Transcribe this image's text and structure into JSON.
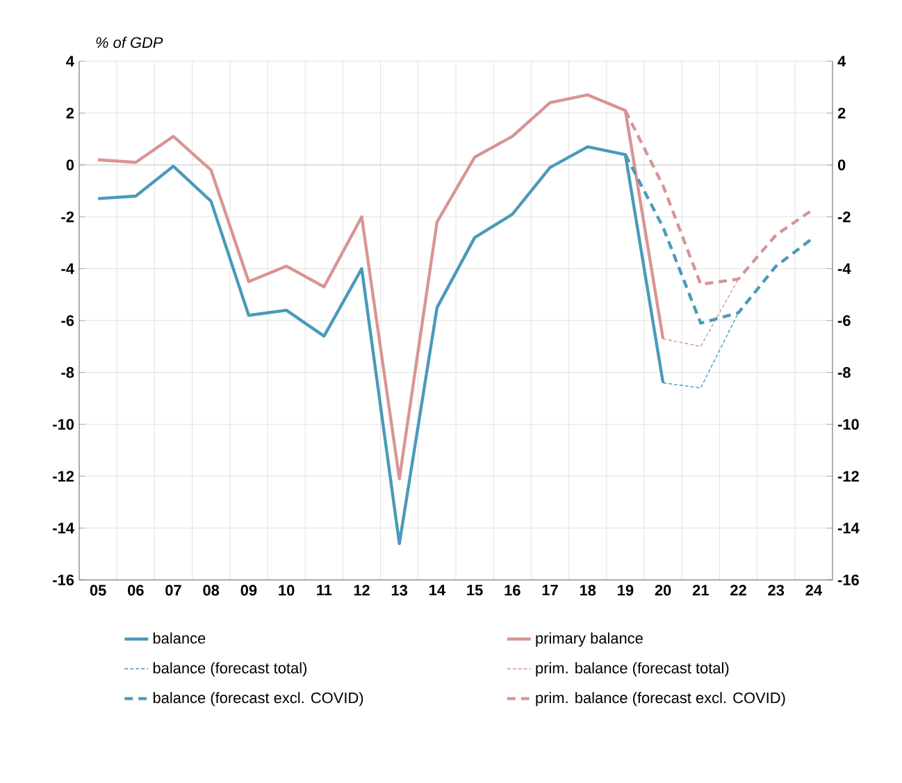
{
  "chart_data": {
    "type": "line",
    "ylabel": "% of GDP",
    "categories": [
      "05",
      "06",
      "07",
      "08",
      "09",
      "10",
      "11",
      "12",
      "13",
      "14",
      "15",
      "16",
      "17",
      "18",
      "19",
      "20",
      "21",
      "22",
      "23",
      "24"
    ],
    "series": [
      {
        "name": "balance",
        "color": "#4a9aba",
        "line_style": "solid",
        "values": [
          -1.3,
          -1.2,
          -0.05,
          -1.4,
          -5.8,
          -5.6,
          -6.6,
          -4.0,
          -14.6,
          -5.5,
          -2.8,
          -1.9,
          -0.1,
          0.7,
          0.4,
          -8.4,
          null,
          null,
          null,
          null
        ]
      },
      {
        "name": "primary balance",
        "color": "#d99494",
        "line_style": "solid",
        "values": [
          0.2,
          0.1,
          1.1,
          -0.2,
          -4.5,
          -3.9,
          -4.7,
          -2.0,
          -12.1,
          -2.2,
          0.3,
          1.1,
          2.4,
          2.7,
          2.1,
          -6.7,
          null,
          null,
          null,
          null
        ]
      },
      {
        "name": "balance (forecast total)",
        "color": "#4a9aba",
        "line_style": "dotted",
        "values": [
          null,
          null,
          null,
          null,
          null,
          null,
          null,
          null,
          null,
          null,
          null,
          null,
          null,
          null,
          null,
          -8.4,
          -8.6,
          -5.7,
          null,
          null
        ]
      },
      {
        "name": "prim. balance (forecast total)",
        "color": "#d99494",
        "line_style": "dotted",
        "values": [
          null,
          null,
          null,
          null,
          null,
          null,
          null,
          null,
          null,
          null,
          null,
          null,
          null,
          null,
          null,
          -6.7,
          -7.0,
          -4.4,
          null,
          null
        ]
      },
      {
        "name": "balance (forecast excl. COVID)",
        "color": "#4a9aba",
        "line_style": "dashed",
        "values": [
          null,
          null,
          null,
          null,
          null,
          null,
          null,
          null,
          null,
          null,
          null,
          null,
          null,
          null,
          0.4,
          -2.4,
          -6.1,
          -5.7,
          -3.9,
          -2.8
        ]
      },
      {
        "name": "prim. balance (forecast excl. COVID)",
        "color": "#d99494",
        "line_style": "dashed",
        "values": [
          null,
          null,
          null,
          null,
          null,
          null,
          null,
          null,
          null,
          null,
          null,
          null,
          null,
          null,
          2.1,
          -0.8,
          -4.6,
          -4.4,
          -2.7,
          -1.7
        ]
      }
    ],
    "ylim": [
      -16,
      4
    ],
    "yticks": [
      -16,
      -14,
      -12,
      -10,
      -8,
      -6,
      -4,
      -2,
      0,
      2,
      4
    ],
    "y2lim": [
      -16,
      4
    ],
    "y2ticks": [
      -16,
      -14,
      -12,
      -10,
      -8,
      -6,
      -4,
      -2,
      0,
      2,
      4
    ],
    "grid": true,
    "legend": "bottom",
    "marker": "none"
  }
}
